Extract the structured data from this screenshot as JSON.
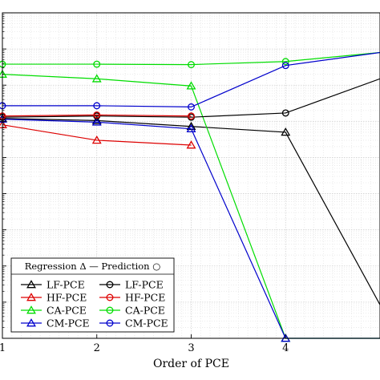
{
  "chart_data": {
    "type": "line",
    "xlabel": "Order of PCE",
    "x": [
      1,
      2,
      3,
      4,
      5
    ],
    "xlim": [
      1,
      5
    ],
    "xticks": [
      1,
      2,
      3,
      4
    ],
    "yscale": "log",
    "ylim": [
      1e-09,
      1
    ],
    "ylabel": "",
    "grid": true,
    "legend": {
      "placement": "bottom-left",
      "header": "Regression Δ — Prediction ○",
      "entries": [
        "LF-PCE",
        "LF-PCE",
        "HF-PCE",
        "HF-PCE",
        "CA-PCE",
        "CA-PCE",
        "CM-PCE",
        "CM-PCE"
      ]
    },
    "series": [
      {
        "name": "LF-PCE",
        "kind": "regression",
        "marker": "triangle",
        "color": "#000000",
        "values": [
          0.0012,
          0.00105,
          0.00072,
          0.0005,
          8.5e-09
        ]
      },
      {
        "name": "HF-PCE",
        "kind": "regression",
        "marker": "triangle",
        "color": "#dd0000",
        "values": [
          0.0008,
          0.0003,
          0.00022,
          null,
          null
        ]
      },
      {
        "name": "CA-PCE",
        "kind": "regression",
        "marker": "triangle",
        "color": "#00dd00",
        "values": [
          0.02,
          0.015,
          0.0095,
          1e-09,
          1e-09
        ]
      },
      {
        "name": "CM-PCE",
        "kind": "regression",
        "marker": "triangle",
        "color": "#0000cc",
        "values": [
          0.00115,
          0.00095,
          0.00062,
          1e-09,
          1e-09
        ]
      },
      {
        "name": "LF-PCE",
        "kind": "prediction",
        "marker": "circle",
        "color": "#000000",
        "values": [
          0.0013,
          0.0014,
          0.0013,
          0.0017,
          0.015
        ]
      },
      {
        "name": "HF-PCE",
        "kind": "prediction",
        "marker": "circle",
        "color": "#dd0000",
        "values": [
          0.0014,
          0.0015,
          0.0014,
          null,
          null
        ]
      },
      {
        "name": "CA-PCE",
        "kind": "prediction",
        "marker": "circle",
        "color": "#00dd00",
        "values": [
          0.038,
          0.038,
          0.037,
          0.045,
          0.08
        ]
      },
      {
        "name": "CM-PCE",
        "kind": "prediction",
        "marker": "circle",
        "color": "#0000cc",
        "values": [
          0.0027,
          0.0027,
          0.0025,
          0.035,
          0.08
        ]
      }
    ]
  }
}
